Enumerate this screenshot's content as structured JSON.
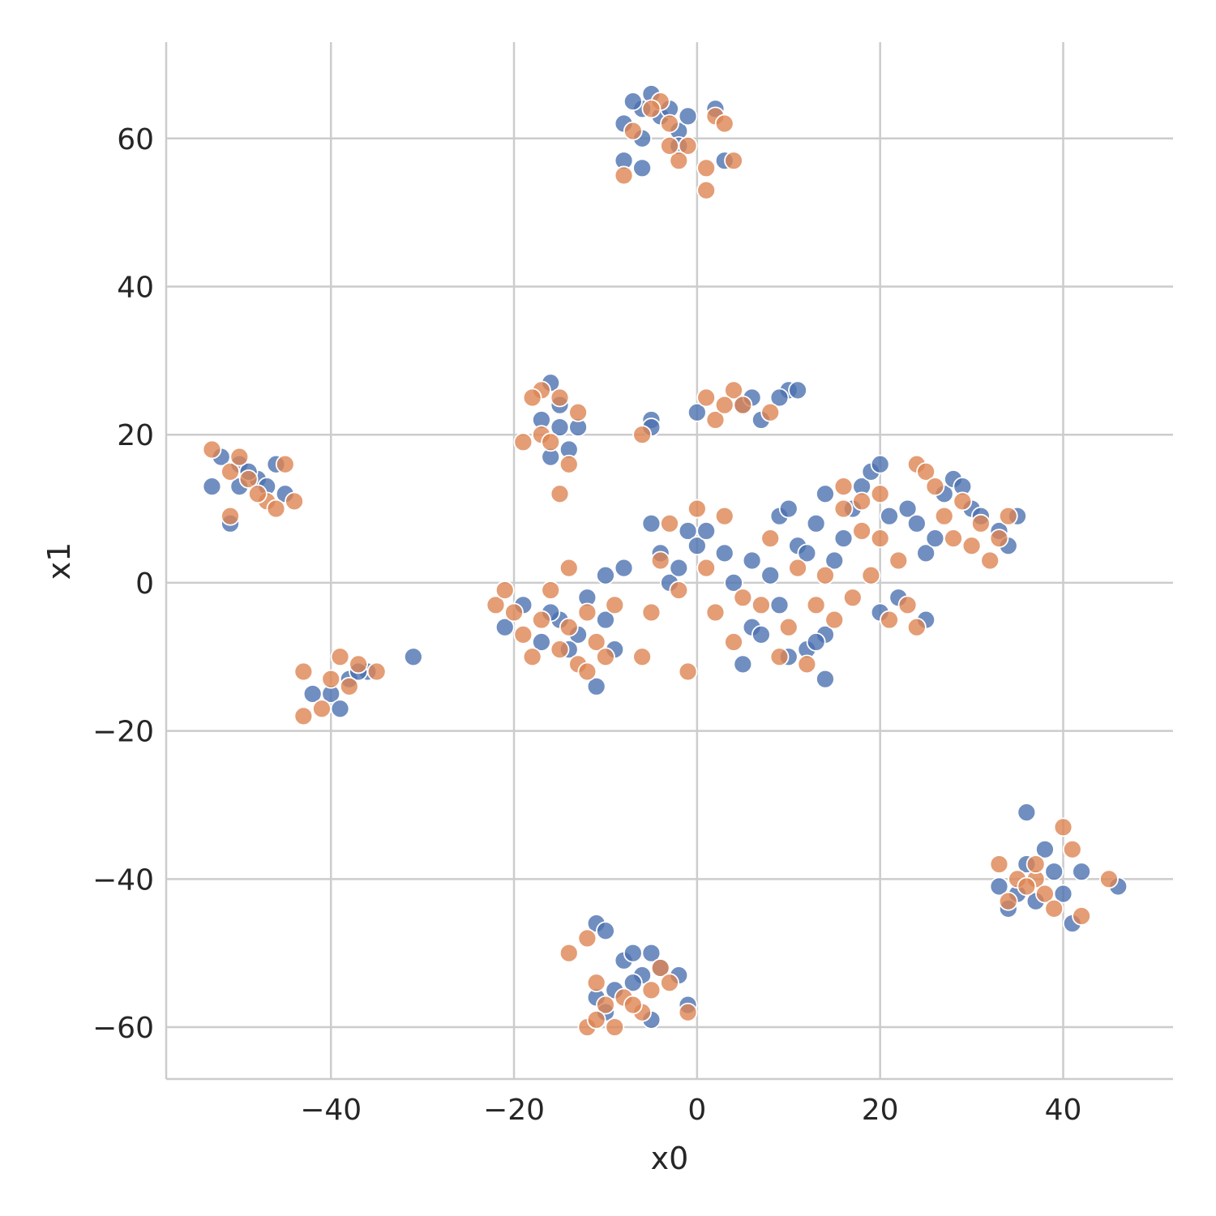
{
  "chart_data": {
    "type": "scatter",
    "title": "",
    "xlabel": "x0",
    "ylabel": "x1",
    "xlim": [
      -58,
      52
    ],
    "ylim": [
      -67,
      73
    ],
    "xticks": [
      -40,
      -20,
      0,
      20,
      40
    ],
    "yticks": [
      -60,
      -40,
      -20,
      0,
      20,
      40,
      60
    ],
    "xtick_labels": [
      "−40",
      "−20",
      "0",
      "20",
      "40"
    ],
    "ytick_labels": [
      "−60",
      "−40",
      "−20",
      "0",
      "20",
      "40",
      "60"
    ],
    "grid": true,
    "legend": "none",
    "series": [
      {
        "color": "#4c72b0",
        "points": [
          [
            -5,
            66
          ],
          [
            -6,
            64
          ],
          [
            -7,
            65
          ],
          [
            -8,
            62
          ],
          [
            -4,
            63
          ],
          [
            -3,
            64
          ],
          [
            -2,
            61
          ],
          [
            -1,
            63
          ],
          [
            -6,
            60
          ],
          [
            -2,
            59
          ],
          [
            -8,
            57
          ],
          [
            -6,
            56
          ],
          [
            3,
            57
          ],
          [
            2,
            64
          ],
          [
            -52,
            17
          ],
          [
            -50,
            16
          ],
          [
            -48,
            14
          ],
          [
            -46,
            16
          ],
          [
            -47,
            13
          ],
          [
            -50,
            13
          ],
          [
            -53,
            13
          ],
          [
            -49,
            15
          ],
          [
            -51,
            8
          ],
          [
            -45,
            12
          ],
          [
            -16,
            27
          ],
          [
            -17,
            22
          ],
          [
            -15,
            21
          ],
          [
            -14,
            18
          ],
          [
            -13,
            21
          ],
          [
            -16,
            17
          ],
          [
            -15,
            24
          ],
          [
            -5,
            22
          ],
          [
            -5,
            21
          ],
          [
            0,
            23
          ],
          [
            5,
            24
          ],
          [
            7,
            22
          ],
          [
            10,
            26
          ],
          [
            11,
            26
          ],
          [
            9,
            25
          ],
          [
            6,
            25
          ],
          [
            -40,
            -15
          ],
          [
            -38,
            -13
          ],
          [
            -36,
            -12
          ],
          [
            -31,
            -10
          ],
          [
            -39,
            -17
          ],
          [
            -37,
            -12
          ],
          [
            -42,
            -15
          ],
          [
            -21,
            -6
          ],
          [
            -19,
            -3
          ],
          [
            -17,
            -8
          ],
          [
            -15,
            -5
          ],
          [
            -13,
            -7
          ],
          [
            -12,
            -2
          ],
          [
            -10,
            1
          ],
          [
            -11,
            -14
          ],
          [
            -9,
            -9
          ],
          [
            -10,
            -5
          ],
          [
            -8,
            2
          ],
          [
            -14,
            -9
          ],
          [
            -16,
            -4
          ],
          [
            -5,
            8
          ],
          [
            -4,
            4
          ],
          [
            -3,
            0
          ],
          [
            -2,
            2
          ],
          [
            -1,
            7
          ],
          [
            0,
            5
          ],
          [
            1,
            7
          ],
          [
            3,
            4
          ],
          [
            4,
            0
          ],
          [
            6,
            3
          ],
          [
            6,
            -6
          ],
          [
            5,
            -11
          ],
          [
            7,
            -7
          ],
          [
            8,
            1
          ],
          [
            9,
            9
          ],
          [
            10,
            10
          ],
          [
            11,
            5
          ],
          [
            12,
            4
          ],
          [
            13,
            8
          ],
          [
            14,
            12
          ],
          [
            15,
            3
          ],
          [
            16,
            6
          ],
          [
            17,
            10
          ],
          [
            18,
            13
          ],
          [
            19,
            15
          ],
          [
            20,
            16
          ],
          [
            21,
            9
          ],
          [
            22,
            -2
          ],
          [
            23,
            10
          ],
          [
            24,
            8
          ],
          [
            25,
            4
          ],
          [
            26,
            6
          ],
          [
            27,
            12
          ],
          [
            28,
            14
          ],
          [
            29,
            13
          ],
          [
            30,
            10
          ],
          [
            31,
            9
          ],
          [
            33,
            7
          ],
          [
            34,
            5
          ],
          [
            35,
            9
          ],
          [
            9,
            -3
          ],
          [
            12,
            -9
          ],
          [
            14,
            -13
          ],
          [
            20,
            -4
          ],
          [
            25,
            -5
          ],
          [
            14,
            -7
          ],
          [
            10,
            -10
          ],
          [
            13,
            -8
          ],
          [
            36,
            -31
          ],
          [
            33,
            -41
          ],
          [
            35,
            -42
          ],
          [
            38,
            -36
          ],
          [
            39,
            -39
          ],
          [
            41,
            -46
          ],
          [
            40,
            -42
          ],
          [
            42,
            -39
          ],
          [
            46,
            -41
          ],
          [
            37,
            -43
          ],
          [
            34,
            -44
          ],
          [
            36,
            -38
          ],
          [
            -11,
            -46
          ],
          [
            -10,
            -47
          ],
          [
            -8,
            -51
          ],
          [
            -7,
            -50
          ],
          [
            -6,
            -53
          ],
          [
            -5,
            -50
          ],
          [
            -11,
            -56
          ],
          [
            -9,
            -55
          ],
          [
            -7,
            -54
          ],
          [
            -5,
            -59
          ],
          [
            -2,
            -53
          ],
          [
            -1,
            -57
          ],
          [
            -10,
            -58
          ],
          [
            -4,
            -52
          ]
        ]
      },
      {
        "color": "#dd8452",
        "points": [
          [
            -4,
            65
          ],
          [
            -3,
            62
          ],
          [
            -1,
            59
          ],
          [
            -2,
            57
          ],
          [
            -5,
            64
          ],
          [
            -7,
            61
          ],
          [
            2,
            63
          ],
          [
            3,
            62
          ],
          [
            4,
            57
          ],
          [
            1,
            56
          ],
          [
            1,
            53
          ],
          [
            -8,
            55
          ],
          [
            -3,
            59
          ],
          [
            -53,
            18
          ],
          [
            -51,
            15
          ],
          [
            -49,
            14
          ],
          [
            -47,
            11
          ],
          [
            -45,
            16
          ],
          [
            -46,
            10
          ],
          [
            -44,
            11
          ],
          [
            -51,
            9
          ],
          [
            -48,
            12
          ],
          [
            -50,
            17
          ],
          [
            -17,
            26
          ],
          [
            -18,
            25
          ],
          [
            -15,
            25
          ],
          [
            -17,
            20
          ],
          [
            -16,
            19
          ],
          [
            -14,
            16
          ],
          [
            -15,
            12
          ],
          [
            -13,
            23
          ],
          [
            -19,
            19
          ],
          [
            -6,
            20
          ],
          [
            1,
            25
          ],
          [
            2,
            22
          ],
          [
            4,
            26
          ],
          [
            5,
            24
          ],
          [
            8,
            23
          ],
          [
            3,
            24
          ],
          [
            -43,
            -12
          ],
          [
            -41,
            -17
          ],
          [
            -39,
            -10
          ],
          [
            -38,
            -14
          ],
          [
            -37,
            -11
          ],
          [
            -35,
            -12
          ],
          [
            -43,
            -18
          ],
          [
            -40,
            -13
          ],
          [
            -22,
            -3
          ],
          [
            -21,
            -1
          ],
          [
            -20,
            -4
          ],
          [
            -19,
            -7
          ],
          [
            -18,
            -10
          ],
          [
            -17,
            -5
          ],
          [
            -16,
            -1
          ],
          [
            -15,
            -9
          ],
          [
            -14,
            2
          ],
          [
            -13,
            -11
          ],
          [
            -12,
            -4
          ],
          [
            -11,
            -8
          ],
          [
            -10,
            -10
          ],
          [
            -9,
            -3
          ],
          [
            -12,
            -12
          ],
          [
            -14,
            -6
          ],
          [
            -6,
            -10
          ],
          [
            -5,
            -4
          ],
          [
            -4,
            3
          ],
          [
            -3,
            8
          ],
          [
            -2,
            -1
          ],
          [
            -1,
            -12
          ],
          [
            0,
            10
          ],
          [
            1,
            2
          ],
          [
            2,
            -4
          ],
          [
            3,
            9
          ],
          [
            4,
            -8
          ],
          [
            5,
            -2
          ],
          [
            7,
            -3
          ],
          [
            8,
            6
          ],
          [
            9,
            -10
          ],
          [
            10,
            -6
          ],
          [
            11,
            2
          ],
          [
            12,
            -11
          ],
          [
            13,
            -3
          ],
          [
            14,
            1
          ],
          [
            15,
            -5
          ],
          [
            16,
            10
          ],
          [
            17,
            -2
          ],
          [
            18,
            11
          ],
          [
            19,
            1
          ],
          [
            20,
            6
          ],
          [
            21,
            -5
          ],
          [
            22,
            3
          ],
          [
            23,
            -3
          ],
          [
            24,
            -6
          ],
          [
            24,
            16
          ],
          [
            25,
            15
          ],
          [
            26,
            13
          ],
          [
            27,
            9
          ],
          [
            28,
            6
          ],
          [
            29,
            11
          ],
          [
            30,
            5
          ],
          [
            31,
            8
          ],
          [
            32,
            3
          ],
          [
            33,
            6
          ],
          [
            34,
            9
          ],
          [
            16,
            13
          ],
          [
            18,
            7
          ],
          [
            20,
            12
          ],
          [
            33,
            -38
          ],
          [
            35,
            -40
          ],
          [
            37,
            -40
          ],
          [
            38,
            -42
          ],
          [
            40,
            -33
          ],
          [
            41,
            -36
          ],
          [
            42,
            -45
          ],
          [
            45,
            -40
          ],
          [
            34,
            -43
          ],
          [
            36,
            -41
          ],
          [
            39,
            -44
          ],
          [
            37,
            -38
          ],
          [
            -14,
            -50
          ],
          [
            -12,
            -48
          ],
          [
            -11,
            -54
          ],
          [
            -10,
            -57
          ],
          [
            -9,
            -60
          ],
          [
            -8,
            -56
          ],
          [
            -6,
            -58
          ],
          [
            -5,
            -55
          ],
          [
            -4,
            -52
          ],
          [
            -3,
            -54
          ],
          [
            -12,
            -60
          ],
          [
            -1,
            -58
          ],
          [
            -7,
            -57
          ],
          [
            -11,
            -59
          ]
        ]
      }
    ]
  }
}
